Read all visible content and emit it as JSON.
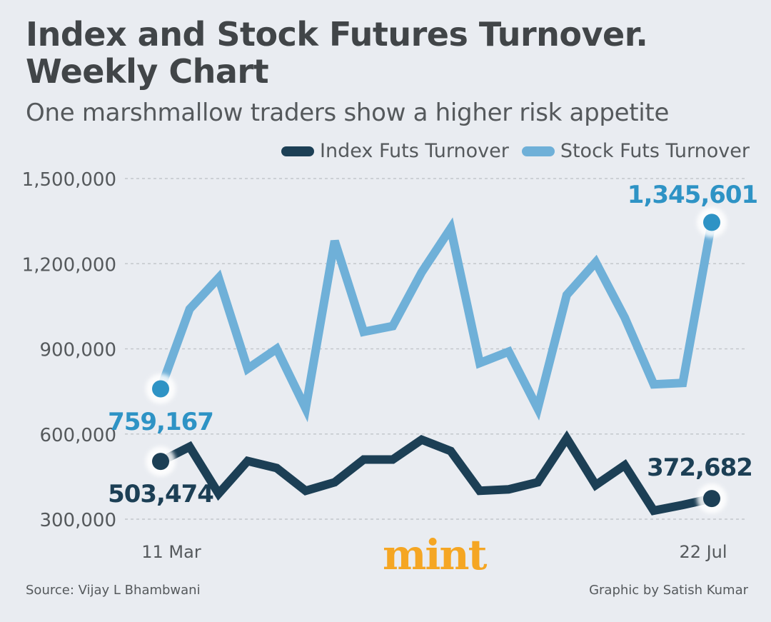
{
  "title": "Index and Stock Futures Turnover. Weekly Chart",
  "subtitle": "One marshmallow traders show a higher risk appetite",
  "source": "Source: Vijay L Bhambwani",
  "credit": "Graphic by Satish Kumar",
  "logo": "mint",
  "colors": {
    "index": "#1c3f55",
    "stock": "#6fb0d8",
    "stock_marker": "#2e93c5",
    "grid": "#c3c7cc",
    "axis_text": "#55595c"
  },
  "chart_data": {
    "type": "line",
    "x_tick_labels": [
      "11 Mar",
      "22 Jul"
    ],
    "ylim": [
      300000,
      1500000
    ],
    "yticks": [
      {
        "value": 300000,
        "label": "300,000"
      },
      {
        "value": 600000,
        "label": "600,000"
      },
      {
        "value": 900000,
        "label": "900,000"
      },
      {
        "value": 1200000,
        "label": "1,200,000"
      },
      {
        "value": 1500000,
        "label": "1,500,000"
      }
    ],
    "grid": true,
    "legend_position": "top-right",
    "series": [
      {
        "key": "index",
        "name": "Index Futs Turnover",
        "values": [
          503474,
          555000,
          390000,
          505000,
          480000,
          400000,
          430000,
          510000,
          510000,
          580000,
          540000,
          400000,
          405000,
          430000,
          585000,
          420000,
          490000,
          330000,
          350000,
          372682
        ],
        "start_label": "503,474",
        "end_label": "372,682"
      },
      {
        "key": "stock",
        "name": "Stock Futs Turnover",
        "values": [
          759167,
          1040000,
          1150000,
          830000,
          900000,
          690000,
          1280000,
          960000,
          980000,
          1170000,
          1325000,
          850000,
          890000,
          690000,
          1090000,
          1205000,
          1010000,
          775000,
          780000,
          1345601
        ],
        "start_label": "759,167",
        "end_label": "1,345,601"
      }
    ]
  }
}
